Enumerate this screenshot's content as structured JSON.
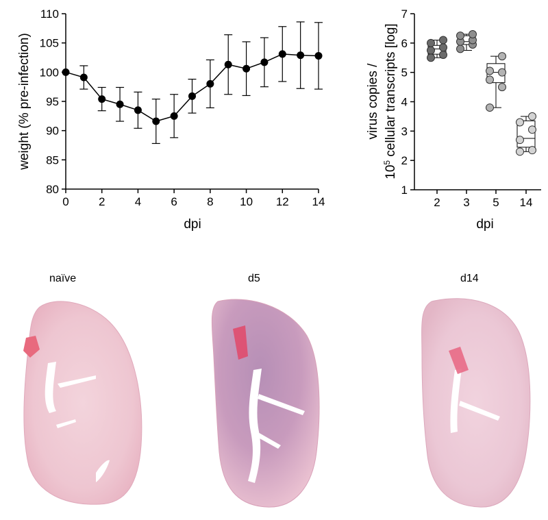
{
  "chart_data": [
    {
      "type": "line",
      "xlabel": "dpi",
      "ylabel": "weight (% pre-infection)",
      "xlim": [
        0,
        14
      ],
      "ylim": [
        80,
        110
      ],
      "x_ticks": [
        0,
        2,
        4,
        6,
        8,
        10,
        12,
        14
      ],
      "y_ticks": [
        80,
        85,
        90,
        95,
        100,
        105,
        110
      ],
      "x": [
        0,
        1,
        2,
        3,
        4,
        5,
        6,
        7,
        8,
        9,
        10,
        11,
        12,
        13,
        14
      ],
      "series": [
        {
          "values": [
            100,
            99.1,
            95.4,
            94.5,
            93.5,
            91.6,
            92.5,
            95.9,
            98.0,
            101.3,
            100.6,
            101.7,
            103.1,
            102.9,
            102.8
          ],
          "error": [
            0,
            2.0,
            2.0,
            2.9,
            3.1,
            3.8,
            3.7,
            2.9,
            4.1,
            5.1,
            4.6,
            4.2,
            4.7,
            5.7,
            5.7
          ]
        }
      ],
      "grid": false
    },
    {
      "type": "scatter",
      "xlabel": "dpi",
      "ylabel_line1": "virus copies /",
      "ylabel_line2_pre": "10",
      "ylabel_line2_sup": "5",
      "ylabel_line2_post": " cellular transcripts [log]",
      "ylim": [
        1,
        7
      ],
      "y_ticks": [
        1,
        2,
        3,
        4,
        5,
        6,
        7
      ],
      "categories": [
        "2",
        "3",
        "5",
        "14"
      ],
      "colors": [
        "#6b6b6b",
        "#8e8e8e",
        "#b3b3b3",
        "#d3d3d3"
      ],
      "boxes": [
        {
          "min": 5.5,
          "q1": 5.62,
          "median": 5.8,
          "q3": 5.92,
          "max": 6.1
        },
        {
          "min": 5.75,
          "q1": 5.95,
          "median": 6.05,
          "q3": 6.25,
          "max": 6.3
        },
        {
          "min": 3.8,
          "q1": 4.65,
          "median": 5.0,
          "q3": 5.3,
          "max": 5.55
        },
        {
          "min": 2.3,
          "q1": 2.45,
          "median": 2.75,
          "q3": 3.35,
          "max": 3.5
        }
      ],
      "points": [
        [
          5.5,
          5.6,
          5.75,
          5.85,
          6.0,
          6.1
        ],
        [
          5.8,
          5.95,
          6.05,
          6.1,
          6.25,
          6.3
        ],
        [
          3.8,
          4.5,
          4.75,
          5.0,
          5.05,
          5.55
        ],
        [
          2.3,
          2.35,
          2.7,
          3.05,
          3.3,
          3.5
        ]
      ],
      "grid": false
    }
  ],
  "histology": {
    "panels": [
      {
        "label": "naïve"
      },
      {
        "label": "d5"
      },
      {
        "label": "d14"
      }
    ]
  }
}
